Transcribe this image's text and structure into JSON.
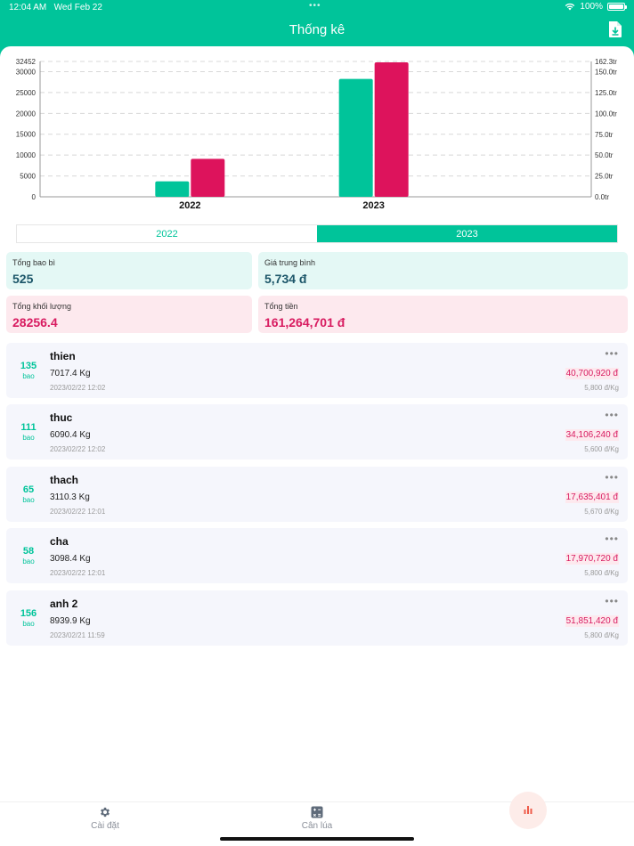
{
  "status": {
    "time": "12:04 AM",
    "date": "Wed Feb 22",
    "battery": "100%"
  },
  "header": {
    "title": "Thống kê",
    "export_icon": "file-download-icon"
  },
  "chart_data": {
    "type": "bar",
    "categories": [
      "2022",
      "2023"
    ],
    "series": [
      {
        "values": [
          3720,
          28256.4
        ],
        "color": "#00c49a",
        "axis": "left"
      },
      {
        "values": [
          45.5,
          161.26
        ],
        "color": "#dd135c",
        "axis": "right"
      }
    ],
    "left_axis": {
      "ticks": [
        0,
        5000,
        10000,
        15000,
        20000,
        25000,
        30000,
        32452
      ],
      "max": 32452
    },
    "right_axis": {
      "ticks": [
        "0.0tr",
        "25.0tr",
        "50.0tr",
        "75.0tr",
        "100.0tr",
        "125.0tr",
        "150.0tr",
        "162.3tr"
      ],
      "max": 162.3,
      "unit": "tr"
    },
    "grid": true,
    "legend": "none"
  },
  "tabs": [
    {
      "label": "2022",
      "active": false
    },
    {
      "label": "2023",
      "active": true
    }
  ],
  "stats": {
    "bags": {
      "label": "Tổng bao bì",
      "value": "525"
    },
    "avg_price": {
      "label": "Giá trung bình",
      "value": "5,734 đ"
    },
    "weight": {
      "label": "Tổng khối lượng",
      "value": "28256.4"
    },
    "total": {
      "label": "Tổng tiền",
      "value": "161,264,701 đ"
    }
  },
  "records": [
    {
      "count": "135",
      "unit": "bao",
      "name": "thien",
      "weight": "7017.4 Kg",
      "date": "2023/02/22 12:02",
      "total": "40,700,920 đ",
      "price": "5,800 đ/Kg"
    },
    {
      "count": "111",
      "unit": "bao",
      "name": "thuc",
      "weight": "6090.4 Kg",
      "date": "2023/02/22 12:02",
      "total": "34,106,240 đ",
      "price": "5,600 đ/Kg"
    },
    {
      "count": "65",
      "unit": "bao",
      "name": "thach",
      "weight": "3110.3 Kg",
      "date": "2023/02/22 12:01",
      "total": "17,635,401 đ",
      "price": "5,670 đ/Kg"
    },
    {
      "count": "58",
      "unit": "bao",
      "name": "cha",
      "weight": "3098.4 Kg",
      "date": "2023/02/22 12:01",
      "total": "17,970,720 đ",
      "price": "5,800 đ/Kg"
    },
    {
      "count": "156",
      "unit": "bao",
      "name": "anh 2",
      "weight": "8939.9 Kg",
      "date": "2023/02/21 11:59",
      "total": "51,851,420 đ",
      "price": "5,800 đ/Kg"
    }
  ],
  "bottom_nav": [
    {
      "label": "Cài đặt",
      "icon": "gear-icon"
    },
    {
      "label": "Cân lúa",
      "icon": "calculator-icon"
    },
    {
      "label": "",
      "icon": "bar-chart-icon",
      "active": true
    }
  ]
}
